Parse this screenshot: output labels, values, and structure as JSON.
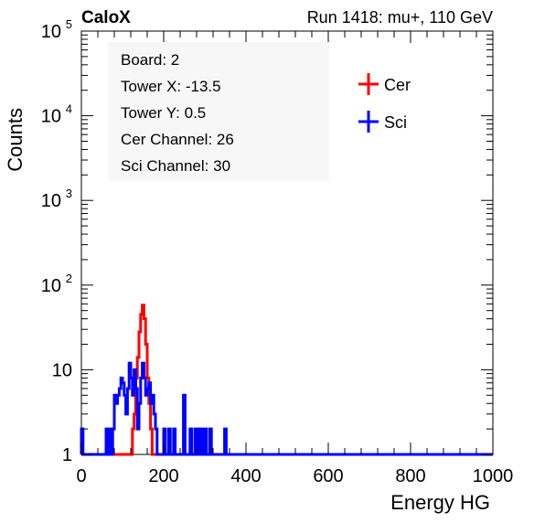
{
  "chart_data": {
    "type": "line",
    "title_left": "CaloX",
    "title_right": "Run 1418: mu+, 110 GeV",
    "xlabel": "Energy HG",
    "ylabel": "Counts",
    "xlim": [
      0,
      1000
    ],
    "ylim": [
      1,
      100000
    ],
    "y_scale": "log",
    "grid": false,
    "x_ticks": [
      "0",
      "200",
      "400",
      "600",
      "800",
      "1000"
    ],
    "y_ticks": [
      {
        "value": 1,
        "label": "1"
      },
      {
        "value": 10,
        "label": "10"
      },
      {
        "value": 100,
        "base": "10",
        "exp": "2"
      },
      {
        "value": 1000,
        "base": "10",
        "exp": "3"
      },
      {
        "value": 10000,
        "base": "10",
        "exp": "4"
      },
      {
        "value": 100000,
        "base": "10",
        "exp": "5"
      }
    ],
    "info_box": [
      "Board: 2",
      "Tower X: -13.5",
      "Tower Y: 0.5",
      "Cer Channel: 26",
      "Sci Channel: 30"
    ],
    "legend_position": "top-right",
    "series": [
      {
        "name": "Cer",
        "color": "#ff0000",
        "bin_width": 4,
        "bins": [
          {
            "x": 120,
            "y": 1
          },
          {
            "x": 124,
            "y": 2
          },
          {
            "x": 128,
            "y": 3
          },
          {
            "x": 132,
            "y": 8
          },
          {
            "x": 136,
            "y": 14
          },
          {
            "x": 140,
            "y": 28
          },
          {
            "x": 144,
            "y": 45
          },
          {
            "x": 148,
            "y": 58
          },
          {
            "x": 152,
            "y": 40
          },
          {
            "x": 156,
            "y": 20
          },
          {
            "x": 160,
            "y": 8
          },
          {
            "x": 164,
            "y": 4
          },
          {
            "x": 168,
            "y": 2
          },
          {
            "x": 172,
            "y": 1
          }
        ]
      },
      {
        "name": "Sci",
        "color": "#0000ff",
        "bin_width": 4,
        "bins": [
          {
            "x": 0,
            "y": 2
          },
          {
            "x": 60,
            "y": 2
          },
          {
            "x": 68,
            "y": 2
          },
          {
            "x": 76,
            "y": 2
          },
          {
            "x": 80,
            "y": 5
          },
          {
            "x": 84,
            "y": 4
          },
          {
            "x": 88,
            "y": 5
          },
          {
            "x": 92,
            "y": 6
          },
          {
            "x": 96,
            "y": 8
          },
          {
            "x": 100,
            "y": 7
          },
          {
            "x": 104,
            "y": 5
          },
          {
            "x": 108,
            "y": 3
          },
          {
            "x": 112,
            "y": 6
          },
          {
            "x": 116,
            "y": 12
          },
          {
            "x": 120,
            "y": 8
          },
          {
            "x": 124,
            "y": 5
          },
          {
            "x": 128,
            "y": 10
          },
          {
            "x": 132,
            "y": 6
          },
          {
            "x": 136,
            "y": 2
          },
          {
            "x": 140,
            "y": 4
          },
          {
            "x": 144,
            "y": 8
          },
          {
            "x": 148,
            "y": 12
          },
          {
            "x": 152,
            "y": 8
          },
          {
            "x": 156,
            "y": 5
          },
          {
            "x": 160,
            "y": 6
          },
          {
            "x": 164,
            "y": 7
          },
          {
            "x": 168,
            "y": 4
          },
          {
            "x": 172,
            "y": 5
          },
          {
            "x": 176,
            "y": 3
          },
          {
            "x": 180,
            "y": 2
          },
          {
            "x": 200,
            "y": 2
          },
          {
            "x": 212,
            "y": 2
          },
          {
            "x": 224,
            "y": 2
          },
          {
            "x": 248,
            "y": 5
          },
          {
            "x": 264,
            "y": 2
          },
          {
            "x": 276,
            "y": 2
          },
          {
            "x": 284,
            "y": 2
          },
          {
            "x": 292,
            "y": 2
          },
          {
            "x": 300,
            "y": 2
          },
          {
            "x": 312,
            "y": 2
          },
          {
            "x": 348,
            "y": 2
          }
        ]
      }
    ]
  }
}
